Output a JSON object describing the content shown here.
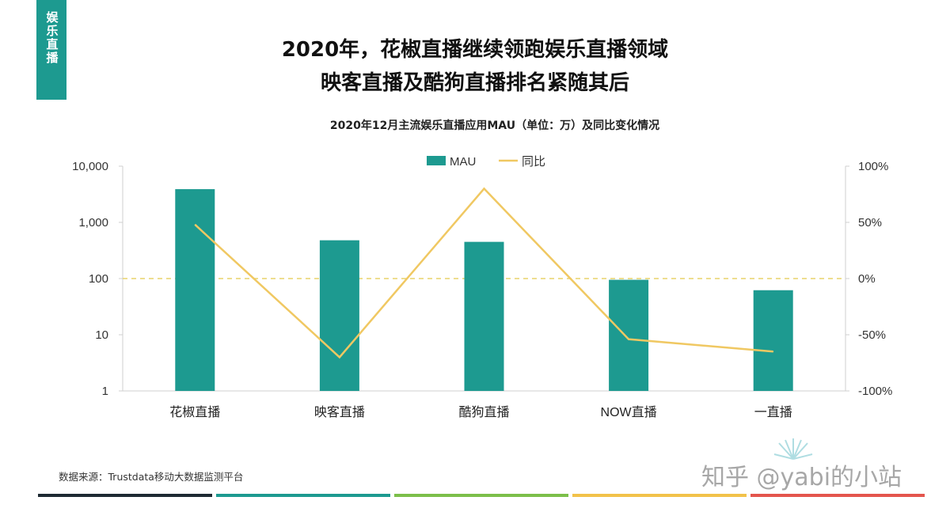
{
  "page": {
    "tag": "娱乐直播",
    "headline_1": "2020年，花椒直播继续领跑娱乐直播领域",
    "headline_2": "映客直播及酷狗直播排名紧随其后",
    "source": "数据来源：Trustdata移动大数据监测平台",
    "watermark": "知乎 @yabi的小站",
    "bottom_bar_colors": [
      "#1e2a32",
      "#1d9a90",
      "#7cbf4a",
      "#f2c24a",
      "#e4554d"
    ]
  },
  "chart_data": {
    "type": "bar",
    "title": "2020年12月主流娱乐直播应用MAU（单位：万）及同比变化情况",
    "categories": [
      "花椒直播",
      "映客直播",
      "酷狗直播",
      "NOW直播",
      "一直播"
    ],
    "series": [
      {
        "name": "MAU",
        "type": "bar",
        "axis": "left",
        "color": "#1d9a90",
        "values": [
          3900,
          480,
          450,
          95,
          62
        ]
      },
      {
        "name": "同比",
        "type": "line",
        "axis": "right",
        "color": "#f0c862",
        "values": [
          48,
          -70,
          80,
          -54,
          -65
        ]
      }
    ],
    "y_left": {
      "scale": "log",
      "ylim": [
        1,
        10000
      ],
      "ticks": [
        "1",
        "10",
        "100",
        "1,000",
        "10,000"
      ],
      "tick_values": [
        1,
        10,
        100,
        1000,
        10000
      ]
    },
    "y_right": {
      "scale": "linear",
      "ylim": [
        -100,
        100
      ],
      "ticks": [
        "-100%",
        "-50%",
        "0%",
        "50%",
        "100%"
      ],
      "tick_values": [
        -100,
        -50,
        0,
        50,
        100
      ]
    },
    "zero_reference_line": {
      "value": 0,
      "axis": "right",
      "style": "dashed",
      "color": "#e8d36a"
    },
    "legend": {
      "placement": "top-center",
      "items": [
        "MAU",
        "同比"
      ]
    },
    "grid": false
  }
}
